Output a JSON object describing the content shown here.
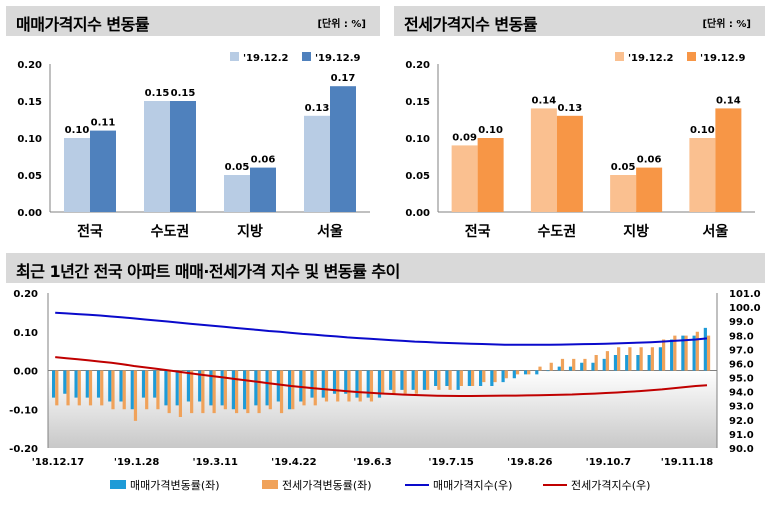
{
  "panels": {
    "sale": {
      "title": "매매가격지수 변동률",
      "unit": "[단위 : %]"
    },
    "jeonse": {
      "title": "전세가격지수 변동률",
      "unit": "[단위 : %]"
    },
    "trend": {
      "title": "최근 1년간 전국 아파트 매매·전세가격 지수 및 변동률 추이"
    }
  },
  "colors": {
    "sale_light": "#b8cce4",
    "sale_dark": "#4f81bd",
    "jeonse_light": "#fac090",
    "jeonse_dark": "#f79646",
    "sale_rate": "#1e9bd7",
    "jeonse_rate": "#f0a25a",
    "sale_index": "#0a0acb",
    "jeonse_index": "#c00000",
    "header_bg": "#d9d9d9"
  },
  "chart_data": [
    {
      "type": "bar",
      "categories": [
        "전국",
        "수도권",
        "지방",
        "서울"
      ],
      "series": [
        {
          "name": "'19.12.2",
          "values": [
            0.1,
            0.15,
            0.05,
            0.13
          ]
        },
        {
          "name": "'19.12.9",
          "values": [
            0.11,
            0.15,
            0.06,
            0.17
          ]
        }
      ],
      "ylim": [
        0,
        0.2
      ],
      "yticks": [
        "0.00",
        "0.05",
        "0.10",
        "0.15",
        "0.20"
      ],
      "legend": "top-right"
    },
    {
      "type": "bar",
      "categories": [
        "전국",
        "수도권",
        "지방",
        "서울"
      ],
      "series": [
        {
          "name": "'19.12.2",
          "values": [
            0.09,
            0.14,
            0.05,
            0.1
          ]
        },
        {
          "name": "'19.12.9",
          "values": [
            0.1,
            0.13,
            0.06,
            0.14
          ]
        }
      ],
      "ylim": [
        0,
        0.2
      ],
      "yticks": [
        "0.00",
        "0.05",
        "0.10",
        "0.15",
        "0.20"
      ],
      "legend": "top-right"
    },
    {
      "type": "bar",
      "x_tick_labels": [
        "'18.12.17",
        "'19.1.28",
        "'19.3.11",
        "'19.4.22",
        "'19.6.3",
        "'19.7.15",
        "'19.8.26",
        "'19.10.7",
        "'19.11.18"
      ],
      "left_ylim": [
        -0.2,
        0.2
      ],
      "left_yticks": [
        "-0.20",
        "-0.10",
        "0.00",
        "0.10",
        "0.20"
      ],
      "right_ylim": [
        90.0,
        101.0
      ],
      "right_yticks": [
        "90.0",
        "91.0",
        "92.0",
        "93.0",
        "94.0",
        "95.0",
        "96.0",
        "97.0",
        "98.0",
        "99.0",
        "100.0",
        "101.0"
      ],
      "series": [
        {
          "name": "매매가격변동률(좌)",
          "type": "bar",
          "axis": "left",
          "values": [
            -0.07,
            -0.06,
            -0.07,
            -0.07,
            -0.07,
            -0.08,
            -0.08,
            -0.1,
            -0.07,
            -0.07,
            -0.09,
            -0.09,
            -0.08,
            -0.08,
            -0.09,
            -0.09,
            -0.1,
            -0.1,
            -0.09,
            -0.09,
            -0.08,
            -0.1,
            -0.08,
            -0.07,
            -0.07,
            -0.06,
            -0.06,
            -0.07,
            -0.07,
            -0.07,
            -0.05,
            -0.05,
            -0.05,
            -0.05,
            -0.04,
            -0.04,
            -0.05,
            -0.04,
            -0.04,
            -0.04,
            -0.03,
            -0.02,
            -0.01,
            -0.01,
            0.0,
            0.01,
            0.01,
            0.02,
            0.02,
            0.03,
            0.04,
            0.04,
            0.04,
            0.04,
            0.06,
            0.08,
            0.09,
            0.09,
            0.11
          ]
        },
        {
          "name": "전세가격변동률(좌)",
          "type": "bar",
          "axis": "left",
          "values": [
            -0.09,
            -0.09,
            -0.09,
            -0.09,
            -0.09,
            -0.1,
            -0.1,
            -0.13,
            -0.1,
            -0.1,
            -0.11,
            -0.12,
            -0.11,
            -0.11,
            -0.11,
            -0.1,
            -0.11,
            -0.11,
            -0.11,
            -0.1,
            -0.11,
            -0.1,
            -0.09,
            -0.09,
            -0.08,
            -0.08,
            -0.08,
            -0.08,
            -0.08,
            -0.06,
            -0.06,
            -0.06,
            -0.06,
            -0.05,
            -0.05,
            -0.05,
            -0.04,
            -0.04,
            -0.03,
            -0.03,
            -0.02,
            -0.01,
            -0.01,
            0.01,
            0.02,
            0.03,
            0.03,
            0.03,
            0.04,
            0.05,
            0.06,
            0.06,
            0.06,
            0.06,
            0.08,
            0.09,
            0.09,
            0.1,
            0.09
          ]
        },
        {
          "name": "매매가격지수(우)",
          "type": "line",
          "axis": "right",
          "values": [
            99.6,
            99.55,
            99.5,
            99.45,
            99.4,
            99.33,
            99.27,
            99.2,
            99.12,
            99.05,
            98.98,
            98.9,
            98.82,
            98.75,
            98.67,
            98.6,
            98.52,
            98.45,
            98.38,
            98.3,
            98.25,
            98.17,
            98.1,
            98.05,
            97.98,
            97.92,
            97.85,
            97.8,
            97.75,
            97.7,
            97.65,
            97.6,
            97.55,
            97.52,
            97.48,
            97.45,
            97.42,
            97.4,
            97.38,
            97.35,
            97.33,
            97.33,
            97.33,
            97.33,
            97.33,
            97.34,
            97.35,
            97.37,
            97.38,
            97.4,
            97.42,
            97.45,
            97.48,
            97.51,
            97.55,
            97.6,
            97.65,
            97.7,
            97.78
          ]
        },
        {
          "name": "전세가격지수(우)",
          "type": "line",
          "axis": "right",
          "values": [
            96.45,
            96.37,
            96.3,
            96.22,
            96.13,
            96.05,
            95.95,
            95.82,
            95.72,
            95.62,
            95.52,
            95.41,
            95.3,
            95.2,
            95.1,
            95.0,
            94.9,
            94.8,
            94.7,
            94.6,
            94.5,
            94.4,
            94.32,
            94.24,
            94.17,
            94.1,
            94.03,
            93.97,
            93.92,
            93.87,
            93.83,
            93.79,
            93.76,
            93.73,
            93.71,
            93.7,
            93.69,
            93.69,
            93.7,
            93.71,
            93.72,
            93.72,
            93.73,
            93.74,
            93.76,
            93.78,
            93.8,
            93.83,
            93.86,
            93.9,
            93.94,
            93.99,
            94.04,
            94.1,
            94.16,
            94.24,
            94.32,
            94.4,
            94.45
          ]
        }
      ],
      "legend": "bottom"
    }
  ]
}
